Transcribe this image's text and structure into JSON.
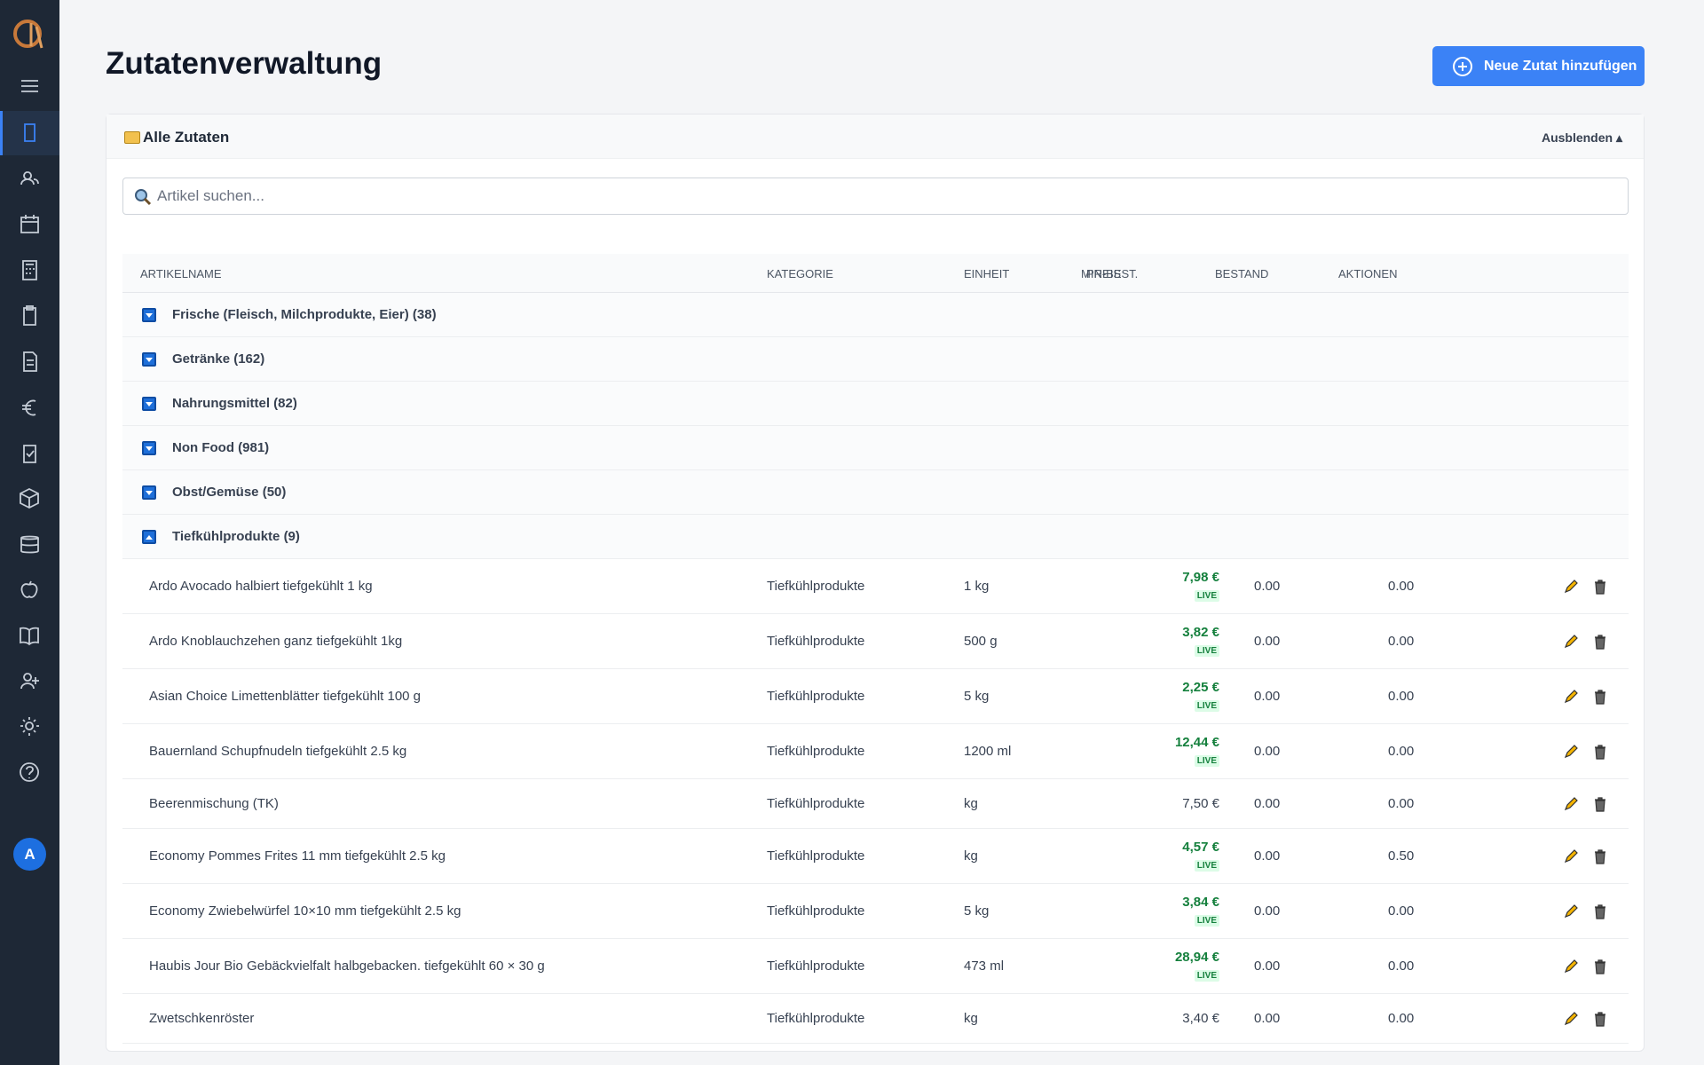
{
  "header": {
    "title": "Zutatenverwaltung",
    "button": "Neue Zutat hinzufügen"
  },
  "sidebar": {
    "avatar": "A"
  },
  "panel": {
    "title": "Alle Zutaten",
    "toggle": "Ausblenden",
    "search_placeholder": "Artikel suchen..."
  },
  "table": {
    "columns": [
      "ARTIKELNAME",
      "KATEGORIE",
      "EINHEIT",
      "PREIS",
      "MIN-BEST.",
      "BESTAND",
      "AKTIONEN"
    ],
    "groups": [
      "Frische (Fleisch, Milchprodukte, Eier) (38)",
      "Getränke (162)",
      "Nahrungsmittel (82)",
      "Non Food (981)",
      "Obst/Gemüse (50)",
      "Tiefkühlprodukte (9)"
    ],
    "rows": [
      {
        "name": "Ardo Avocado halbiert tiefgekühlt 1 kg",
        "category": "Tiefkühlprodukte",
        "unit": "1 kg",
        "price": "7,98 €",
        "live": "LIVE",
        "min": "0.00",
        "stock": "0.00"
      },
      {
        "name": "Ardo Knoblauchzehen ganz tiefgekühlt 1kg",
        "category": "Tiefkühlprodukte",
        "unit": "500 g",
        "price": "3,82 €",
        "live": "LIVE",
        "min": "0.00",
        "stock": "0.00"
      },
      {
        "name": "Asian Choice Limettenblätter tiefgekühlt 100 g",
        "category": "Tiefkühlprodukte",
        "unit": "5 kg",
        "price": "2,25 €",
        "live": "LIVE",
        "min": "0.00",
        "stock": "0.00"
      },
      {
        "name": "Bauernland Schupfnudeln tiefgekühlt 2.5 kg",
        "category": "Tiefkühlprodukte",
        "unit": "1200 ml",
        "price": "12,44 €",
        "live": "LIVE",
        "min": "0.00",
        "stock": "0.00"
      },
      {
        "name": "Beerenmischung (TK)",
        "category": "Tiefkühlprodukte",
        "unit": "kg",
        "price": "7,50 €",
        "min": "0.00",
        "stock": "0.00"
      },
      {
        "name": "Economy Pommes Frites 11 mm tiefgekühlt 2.5 kg",
        "category": "Tiefkühlprodukte",
        "unit": "kg",
        "price": "4,57 €",
        "live": "LIVE",
        "min": "0.00",
        "stock": "0.50"
      },
      {
        "name": "Economy Zwiebelwürfel 10×10 mm tiefgekühlt 2.5 kg",
        "category": "Tiefkühlprodukte",
        "unit": "5 kg",
        "price": "3,84 €",
        "live": "LIVE",
        "min": "0.00",
        "stock": "0.00"
      },
      {
        "name": "Haubis Jour Bio Gebäckvielfalt halbgebacken. tiefgekühlt 60 × 30 g",
        "category": "Tiefkühlprodukte",
        "unit": "473 ml",
        "price": "28,94 €",
        "live": "LIVE",
        "min": "0.00",
        "stock": "0.00"
      },
      {
        "name": "Zwetschkenröster",
        "category": "Tiefkühlprodukte",
        "unit": "kg",
        "price": "3,40 €",
        "min": "0.00",
        "stock": "0.00"
      }
    ]
  }
}
